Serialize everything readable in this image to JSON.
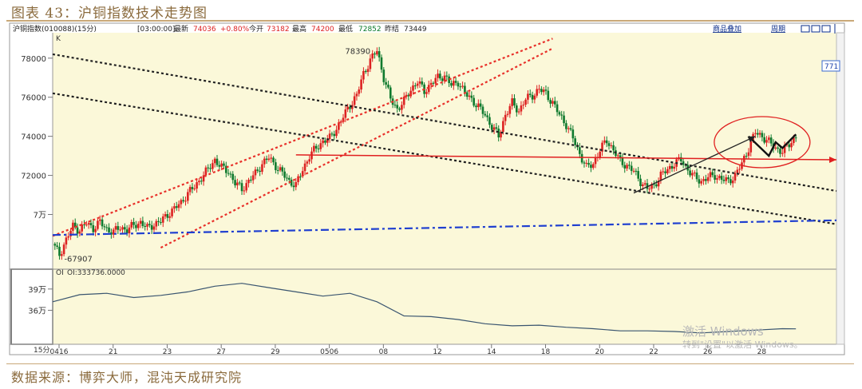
{
  "figure_title": "图表 43：沪铜指数技术走势图",
  "source_note": "数据来源：博弈大师，混沌天成研究院",
  "toolbar": {
    "instrument": "沪铜指数(010088)(15分)",
    "time": "[03:00:00]",
    "latest_label": "最新",
    "latest_value": "74036",
    "change": "+0.80%",
    "open_label": "今开",
    "open_value": "73182",
    "high_label": "最高",
    "high_value": "74200",
    "low_label": "最低",
    "low_value": "72852",
    "prev_label": "昨结",
    "prev_value": "73449",
    "overlay_button": "商品叠加",
    "period_button": "周期"
  },
  "main_panel_label": "K",
  "sub_panel_label": "OI",
  "oi_readout": "OI:333736.0000",
  "period_label": "15分",
  "right_edge_badge": "771",
  "watermark": {
    "line1": "激活 Windows",
    "line2": "转到\"设置\"以激活 Windows。"
  },
  "annotations": {
    "high_label": "78390",
    "low_label": "-67907"
  },
  "chart_data": [
    {
      "type": "candlestick",
      "title": "",
      "xlabel": "",
      "ylabel": "",
      "y_ticks": [
        "78000",
        "76000",
        "74000",
        "72000",
        "7万"
      ],
      "y_tick_values": [
        78000,
        76000,
        74000,
        72000,
        70000
      ],
      "ylim": [
        67200,
        79300
      ],
      "x_ticks": [
        "0416",
        "21",
        "23",
        "27",
        "29",
        "0506",
        "08",
        "12",
        "14",
        "18",
        "20",
        "22",
        "26",
        "28"
      ],
      "x_tick_index": [
        0,
        8,
        16,
        24,
        32,
        40,
        48,
        56,
        64,
        72,
        80,
        88,
        96,
        104
      ],
      "x_range": [
        0,
        116
      ],
      "grid": false,
      "up_color": "#dd2222",
      "down_color": "#0f7a2e",
      "close_path": [
        [
          0,
          68500
        ],
        [
          1,
          67950
        ],
        [
          2,
          68700
        ],
        [
          3,
          69400
        ],
        [
          4,
          69200
        ],
        [
          5,
          69550
        ],
        [
          6,
          69300
        ],
        [
          7,
          69600
        ],
        [
          8,
          69250
        ],
        [
          9,
          69100
        ],
        [
          10,
          69350
        ],
        [
          11,
          69200
        ],
        [
          12,
          69450
        ],
        [
          13,
          69600
        ],
        [
          14,
          69300
        ],
        [
          15,
          69500
        ],
        [
          16,
          69650
        ],
        [
          17,
          70000
        ],
        [
          18,
          70300
        ],
        [
          19,
          70600
        ],
        [
          20,
          71100
        ],
        [
          21,
          71400
        ],
        [
          22,
          71900
        ],
        [
          23,
          72300
        ],
        [
          24,
          72800
        ],
        [
          25,
          72400
        ],
        [
          26,
          72200
        ],
        [
          27,
          71600
        ],
        [
          28,
          71300
        ],
        [
          29,
          71700
        ],
        [
          30,
          72100
        ],
        [
          31,
          72600
        ],
        [
          32,
          72900
        ],
        [
          33,
          72500
        ],
        [
          34,
          72100
        ],
        [
          35,
          71700
        ],
        [
          36,
          71500
        ],
        [
          37,
          72300
        ],
        [
          38,
          73000
        ],
        [
          39,
          73400
        ],
        [
          40,
          73750
        ],
        [
          41,
          73900
        ],
        [
          42,
          74400
        ],
        [
          43,
          75000
        ],
        [
          44,
          75600
        ],
        [
          45,
          76100
        ],
        [
          46,
          77200
        ],
        [
          47,
          77900
        ],
        [
          48,
          78390
        ],
        [
          49,
          77000
        ],
        [
          50,
          75900
        ],
        [
          51,
          75400
        ],
        [
          52,
          75800
        ],
        [
          53,
          76400
        ],
        [
          54,
          76800
        ],
        [
          55,
          76300
        ],
        [
          56,
          76700
        ],
        [
          57,
          77000
        ],
        [
          58,
          77100
        ],
        [
          59,
          76600
        ],
        [
          60,
          76800
        ],
        [
          61,
          76200
        ],
        [
          62,
          75900
        ],
        [
          63,
          75500
        ],
        [
          64,
          75100
        ],
        [
          65,
          74500
        ],
        [
          66,
          74000
        ],
        [
          67,
          75100
        ],
        [
          68,
          75700
        ],
        [
          69,
          75300
        ],
        [
          70,
          75900
        ],
        [
          71,
          76100
        ],
        [
          72,
          76400
        ],
        [
          73,
          76200
        ],
        [
          74,
          75700
        ],
        [
          75,
          75100
        ],
        [
          76,
          74600
        ],
        [
          77,
          73900
        ],
        [
          78,
          73100
        ],
        [
          79,
          72400
        ],
        [
          80,
          72600
        ],
        [
          81,
          73300
        ],
        [
          82,
          73800
        ],
        [
          83,
          73300
        ],
        [
          84,
          72700
        ],
        [
          85,
          72500
        ],
        [
          86,
          72200
        ],
        [
          87,
          71700
        ],
        [
          88,
          71300
        ],
        [
          89,
          71500
        ],
        [
          90,
          72000
        ],
        [
          91,
          72300
        ],
        [
          92,
          72600
        ],
        [
          93,
          72800
        ],
        [
          94,
          72300
        ],
        [
          95,
          71900
        ],
        [
          96,
          71700
        ],
        [
          97,
          71900
        ],
        [
          98,
          72000
        ],
        [
          99,
          71800
        ],
        [
          100,
          71700
        ],
        [
          101,
          72000
        ],
        [
          102,
          72600
        ],
        [
          103,
          73400
        ],
        [
          104,
          74200
        ],
        [
          105,
          74000
        ],
        [
          106,
          73700
        ],
        [
          107,
          73400
        ],
        [
          108,
          73200
        ],
        [
          109,
          73600
        ],
        [
          110,
          74000
        ]
      ],
      "overlays": [
        {
          "style": "red-dotted",
          "points": [
            [
              0,
              68900
            ],
            [
              74,
              79000
            ]
          ]
        },
        {
          "style": "red-dotted",
          "points": [
            [
              16,
              68300
            ],
            [
              74,
              78500
            ]
          ]
        },
        {
          "style": "black-dotted",
          "points": [
            [
              0,
              78200
            ],
            [
              116,
              71200
            ]
          ]
        },
        {
          "style": "black-dotted",
          "points": [
            [
              0,
              76200
            ],
            [
              116,
              69500
            ]
          ]
        },
        {
          "style": "red-solid",
          "points": [
            [
              36,
              73050
            ],
            [
              116,
              72800
            ]
          ]
        },
        {
          "style": "blue-dashdot",
          "points": [
            [
              0,
              68950
            ],
            [
              116,
              69700
            ]
          ]
        },
        {
          "style": "black-solid",
          "points": [
            [
              86,
              71100
            ],
            [
              104,
              74000
            ]
          ]
        },
        {
          "style": "black-zigzag",
          "points": [
            [
              103,
              74000
            ],
            [
              106,
              73000
            ],
            [
              107,
              73700
            ],
            [
              108,
              73400
            ],
            [
              110,
              74100
            ]
          ]
        }
      ]
    },
    {
      "type": "line",
      "title": "",
      "series_label": "OI",
      "y_ticks": [
        "39万",
        "36万"
      ],
      "y_tick_values": [
        390000,
        360000
      ],
      "ylim": [
        312000,
        418000
      ],
      "x": [
        0,
        4,
        8,
        12,
        16,
        20,
        24,
        28,
        32,
        36,
        40,
        44,
        48,
        52,
        56,
        60,
        64,
        68,
        72,
        76,
        80,
        84,
        88,
        92,
        96,
        100,
        104,
        108,
        110
      ],
      "values": [
        372000,
        382000,
        384000,
        378000,
        381000,
        386000,
        394000,
        398000,
        392000,
        386000,
        380000,
        384000,
        372000,
        352000,
        351000,
        347000,
        341000,
        338000,
        339000,
        336000,
        334000,
        331000,
        331000,
        330000,
        328000,
        330000,
        332000,
        334000,
        333736
      ]
    }
  ]
}
